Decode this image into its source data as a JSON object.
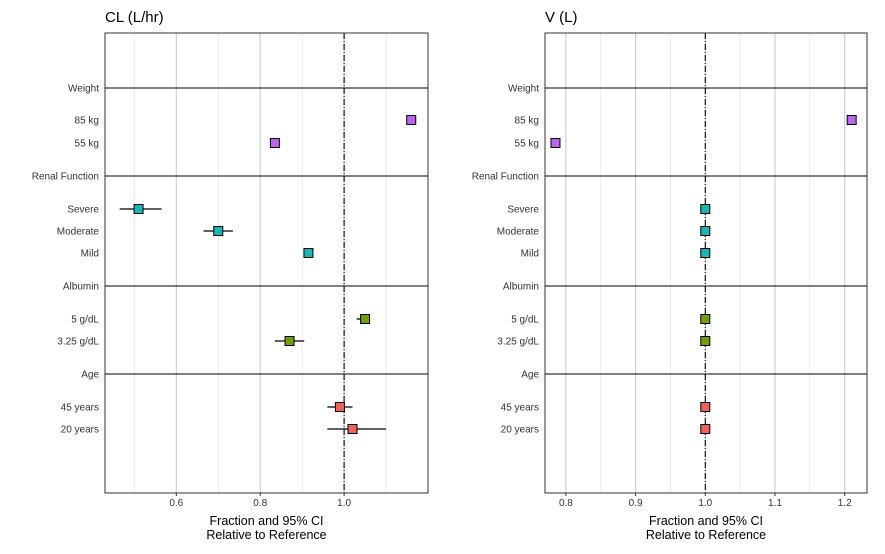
{
  "chart_data": [
    {
      "type": "forest",
      "title": "CL (L/hr)",
      "xlabel_lines": [
        "Fraction and 95% CI",
        "Relative to Reference"
      ],
      "xlim": [
        0.43,
        1.2
      ],
      "xticks": [
        "0.6",
        "0.8",
        "1.0"
      ],
      "xtick_values": [
        0.6,
        0.8,
        1.0
      ],
      "minor_grid": [
        0.5,
        0.7,
        0.9,
        1.1
      ],
      "reference_line": 1.0,
      "grid": true,
      "groups": [
        {
          "name": "Weight",
          "rows": [
            {
              "label": "85 kg",
              "estimate": 1.16,
              "lower": 1.16,
              "upper": 1.16,
              "color": "#b966ee"
            },
            {
              "label": "55 kg",
              "estimate": 0.835,
              "lower": 0.835,
              "upper": 0.835,
              "color": "#b966ee"
            }
          ]
        },
        {
          "name": "Renal Function",
          "rows": [
            {
              "label": "Severe",
              "estimate": 0.51,
              "lower": 0.465,
              "upper": 0.565,
              "color": "#1ab5b5"
            },
            {
              "label": "Moderate",
              "estimate": 0.7,
              "lower": 0.665,
              "upper": 0.735,
              "color": "#1ab5b5"
            },
            {
              "label": "Mild",
              "estimate": 0.915,
              "lower": 0.905,
              "upper": 0.925,
              "color": "#1ab5b5"
            }
          ]
        },
        {
          "name": "Albumin",
          "rows": [
            {
              "label": "5 g/dL",
              "estimate": 1.05,
              "lower": 1.03,
              "upper": 1.06,
              "color": "#6fa100"
            },
            {
              "label": "3.25 g/dL",
              "estimate": 0.87,
              "lower": 0.835,
              "upper": 0.905,
              "color": "#6fa100"
            }
          ]
        },
        {
          "name": "Age",
          "rows": [
            {
              "label": "45 years",
              "estimate": 0.99,
              "lower": 0.96,
              "upper": 1.02,
              "color": "#f0625a"
            },
            {
              "label": "20 years",
              "estimate": 1.02,
              "lower": 0.96,
              "upper": 1.1,
              "color": "#f0625a"
            }
          ]
        }
      ]
    },
    {
      "type": "forest",
      "title": "V (L)",
      "xlabel_lines": [
        "Fraction and 95% CI",
        "Relative to Reference"
      ],
      "xlim": [
        0.77,
        1.232
      ],
      "xticks": [
        "0.8",
        "0.9",
        "1.0",
        "1.1",
        "1.2"
      ],
      "xtick_values": [
        0.8,
        0.9,
        1.0,
        1.1,
        1.2
      ],
      "minor_grid": [
        0.85,
        0.95,
        1.05,
        1.15
      ],
      "reference_line": 1.0,
      "grid": true,
      "groups": [
        {
          "name": "Weight",
          "rows": [
            {
              "label": "85 kg",
              "estimate": 1.21,
              "lower": 1.21,
              "upper": 1.21,
              "color": "#b966ee"
            },
            {
              "label": "55 kg",
              "estimate": 0.785,
              "lower": 0.785,
              "upper": 0.785,
              "color": "#b966ee"
            }
          ]
        },
        {
          "name": "Renal Function",
          "rows": [
            {
              "label": "Severe",
              "estimate": 1.0,
              "lower": 1.0,
              "upper": 1.0,
              "color": "#1ab5b5"
            },
            {
              "label": "Moderate",
              "estimate": 1.0,
              "lower": 1.0,
              "upper": 1.0,
              "color": "#1ab5b5"
            },
            {
              "label": "Mild",
              "estimate": 1.0,
              "lower": 1.0,
              "upper": 1.0,
              "color": "#1ab5b5"
            }
          ]
        },
        {
          "name": "Albumin",
          "rows": [
            {
              "label": "5 g/dL",
              "estimate": 1.0,
              "lower": 1.0,
              "upper": 1.0,
              "color": "#6fa100"
            },
            {
              "label": "3.25 g/dL",
              "estimate": 1.0,
              "lower": 1.0,
              "upper": 1.0,
              "color": "#6fa100"
            }
          ]
        },
        {
          "name": "Age",
          "rows": [
            {
              "label": "45 years",
              "estimate": 1.0,
              "lower": 1.0,
              "upper": 1.0,
              "color": "#f0625a"
            },
            {
              "label": "20 years",
              "estimate": 1.0,
              "lower": 1.0,
              "upper": 1.0,
              "color": "#f0625a"
            }
          ]
        }
      ]
    }
  ]
}
